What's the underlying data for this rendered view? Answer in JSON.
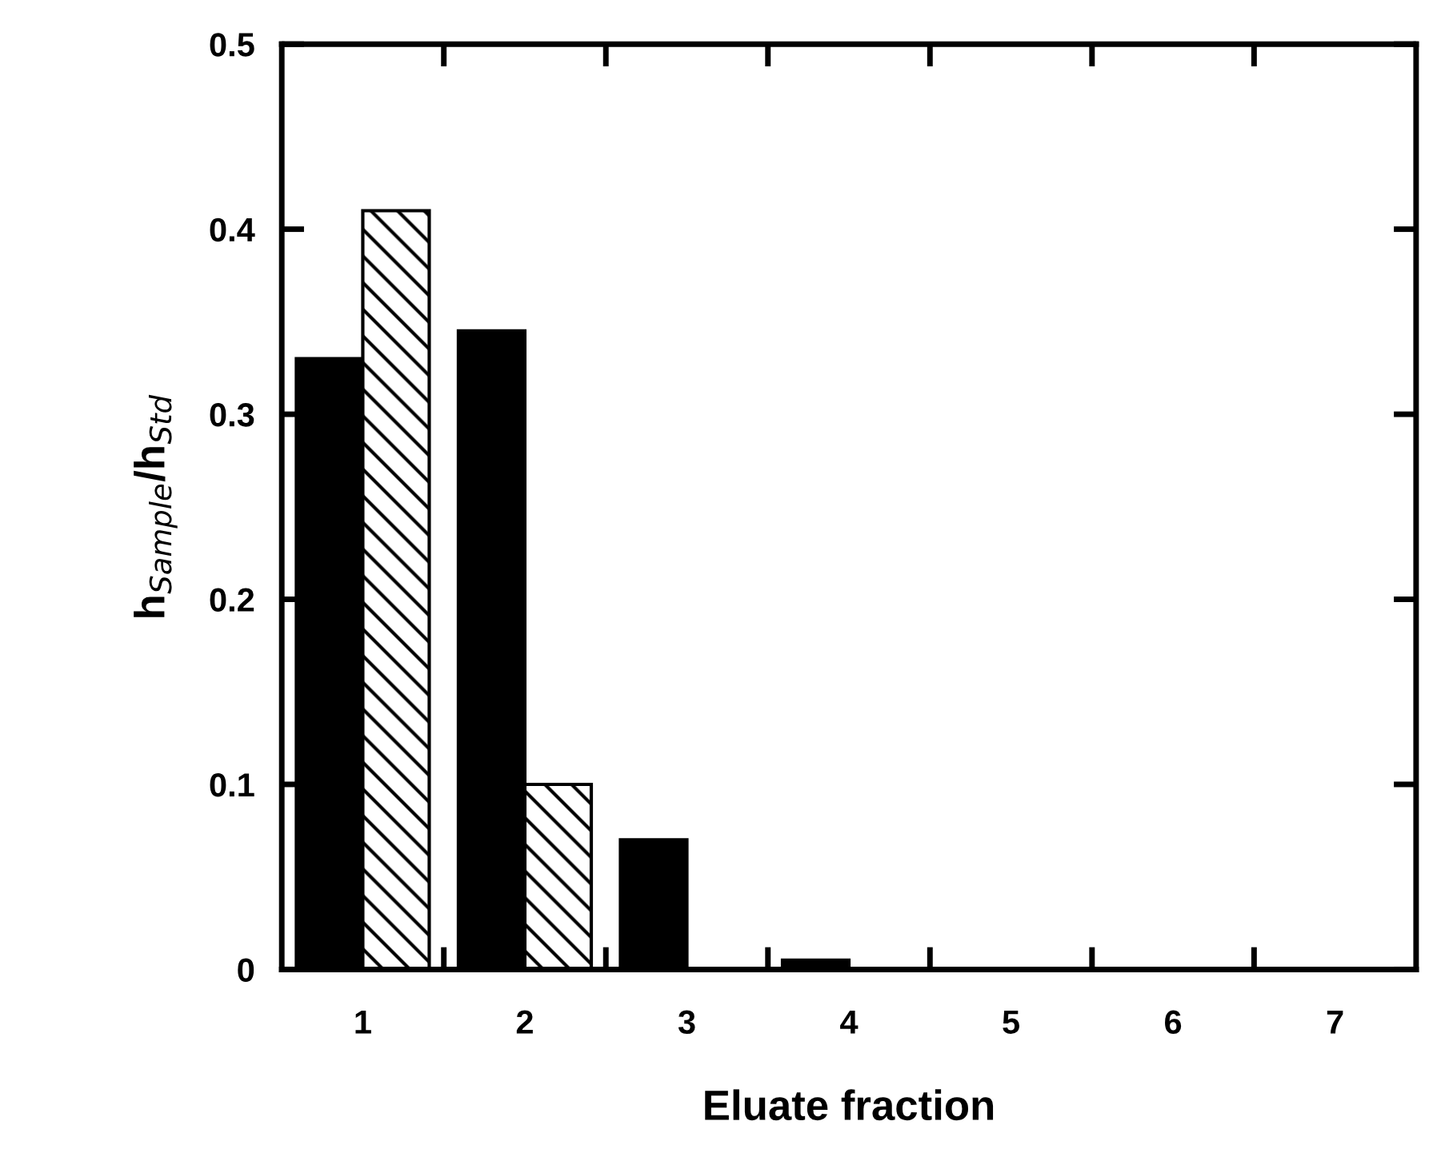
{
  "chart_data": {
    "type": "bar",
    "xlabel": "Eluate fraction",
    "ylabel": "h$_{Sample}$/h$_{Std}$",
    "categories": [
      "1",
      "2",
      "3",
      "4",
      "5",
      "6",
      "7"
    ],
    "series": [
      {
        "color": "#000000",
        "values": [
          0.33,
          0.345,
          0.07,
          0.005,
          0,
          0,
          0
        ]
      },
      {
        "color": "#000000",
        "values": [
          0.41,
          0.1,
          0,
          0,
          0,
          0,
          0
        ]
      }
    ],
    "ylim": [
      0,
      0.5
    ],
    "yticks": [
      0,
      {
        "value": 0.1,
        "label": "0.1"
      },
      0.2,
      0.3,
      0.4,
      0.5
    ],
    "grid": false,
    "legend": false
  }
}
